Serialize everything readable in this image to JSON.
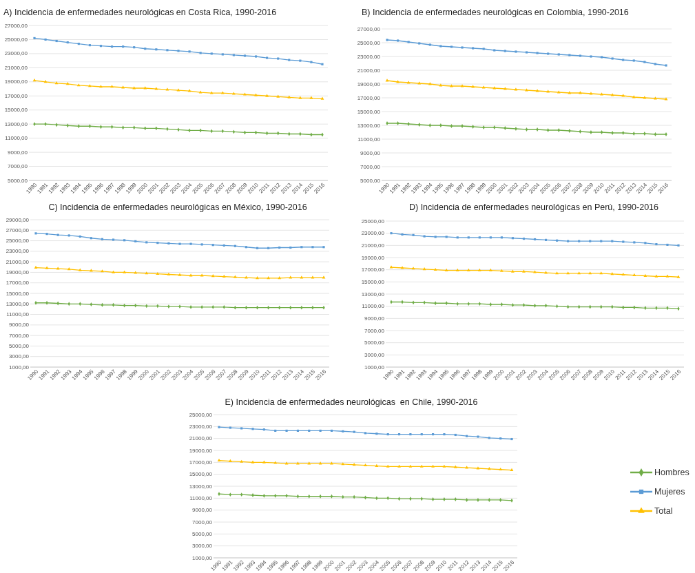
{
  "chart_data": [
    {
      "type": "line",
      "title": "A) Incidencia de enfermedades neurológicas en Costa Rica, 1990-2016",
      "categories": [
        "1990",
        "1991",
        "1992",
        "1993",
        "1994",
        "1995",
        "1996",
        "1997",
        "1998",
        "1999",
        "2000",
        "2001",
        "2002",
        "2003",
        "2004",
        "2005",
        "2006",
        "2007",
        "2008",
        "2009",
        "2010",
        "2011",
        "2012",
        "2013",
        "2014",
        "2015",
        "2016"
      ],
      "ylim": [
        5000,
        27000
      ],
      "yticks": [
        {
          "value": 5000,
          "label": "5000,00"
        },
        {
          "value": 7000,
          "label": "7000,00"
        },
        {
          "value": 9000,
          "label": "9000,00"
        },
        {
          "value": 11000,
          "label": "11000,00"
        },
        {
          "value": 13000,
          "label": "13000,00"
        },
        {
          "value": 15000,
          "label": "15000,00"
        },
        {
          "value": 17000,
          "label": "17000,00"
        },
        {
          "value": 19000,
          "label": "19000,00"
        },
        {
          "value": 21000,
          "label": "21000,00"
        },
        {
          "value": 23000,
          "label": "23000,00"
        },
        {
          "value": 25000,
          "label": "25000,00"
        },
        {
          "value": 27000,
          "label": "27000,00"
        }
      ],
      "grid": true,
      "series": [
        {
          "color": "#70ad47",
          "marker": "diamond",
          "values": [
            13000,
            13000,
            12900,
            12800,
            12700,
            12700,
            12600,
            12600,
            12500,
            12500,
            12400,
            12400,
            12300,
            12200,
            12100,
            12100,
            12000,
            12000,
            11900,
            11800,
            11800,
            11700,
            11700,
            11600,
            11600,
            11500,
            11500
          ]
        },
        {
          "color": "#5b9bd5",
          "marker": "square",
          "values": [
            25200,
            25000,
            24800,
            24600,
            24400,
            24200,
            24100,
            24000,
            24000,
            23900,
            23700,
            23600,
            23500,
            23400,
            23300,
            23100,
            23000,
            22900,
            22800,
            22700,
            22600,
            22400,
            22300,
            22100,
            22000,
            21800,
            21500
          ]
        },
        {
          "color": "#ffc000",
          "marker": "triangle",
          "values": [
            19200,
            19000,
            18800,
            18700,
            18500,
            18400,
            18300,
            18300,
            18200,
            18100,
            18100,
            18000,
            17900,
            17800,
            17700,
            17500,
            17400,
            17400,
            17300,
            17200,
            17100,
            17000,
            16900,
            16800,
            16700,
            16700,
            16600
          ]
        }
      ]
    },
    {
      "type": "line",
      "title": "B) Incidencia de enfermedades neurológicas en Colombia, 1990-2016",
      "categories": [
        "1990",
        "1991",
        "1992",
        "1993",
        "1994",
        "1995",
        "1996",
        "1997",
        "1998",
        "1999",
        "2000",
        "2001",
        "2002",
        "2003",
        "2004",
        "2005",
        "2006",
        "2007",
        "2008",
        "2009",
        "2010",
        "2011",
        "2012",
        "2013",
        "2014",
        "2015",
        "2016"
      ],
      "ylim": [
        5000,
        27000
      ],
      "yticks": [
        {
          "value": 5000,
          "label": "5000,00"
        },
        {
          "value": 7000,
          "label": "7000,00"
        },
        {
          "value": 9000,
          "label": "9000,00"
        },
        {
          "value": 11000,
          "label": "11000,00"
        },
        {
          "value": 13000,
          "label": "13000,00"
        },
        {
          "value": 15000,
          "label": "15000,00"
        },
        {
          "value": 17000,
          "label": "17000,00"
        },
        {
          "value": 19000,
          "label": "19000,00"
        },
        {
          "value": 21000,
          "label": "21000,00"
        },
        {
          "value": 23000,
          "label": "23000,00"
        },
        {
          "value": 25000,
          "label": "25000,00"
        },
        {
          "value": 27000,
          "label": "27000,00"
        }
      ],
      "grid": true,
      "series": [
        {
          "color": "#70ad47",
          "marker": "diamond",
          "values": [
            13300,
            13300,
            13200,
            13100,
            13000,
            13000,
            12900,
            12900,
            12800,
            12700,
            12700,
            12600,
            12500,
            12400,
            12400,
            12300,
            12300,
            12200,
            12100,
            12000,
            12000,
            11900,
            11900,
            11800,
            11800,
            11700,
            11700
          ]
        },
        {
          "color": "#5b9bd5",
          "marker": "square",
          "values": [
            25400,
            25300,
            25100,
            24900,
            24700,
            24500,
            24400,
            24300,
            24200,
            24100,
            23900,
            23800,
            23700,
            23600,
            23500,
            23400,
            23300,
            23200,
            23100,
            23000,
            22900,
            22700,
            22500,
            22400,
            22200,
            21900,
            21700
          ]
        },
        {
          "color": "#ffc000",
          "marker": "triangle",
          "values": [
            19500,
            19300,
            19200,
            19100,
            19000,
            18800,
            18700,
            18700,
            18600,
            18500,
            18400,
            18300,
            18200,
            18100,
            18000,
            17900,
            17800,
            17700,
            17700,
            17600,
            17500,
            17400,
            17300,
            17100,
            17000,
            16900,
            16800
          ]
        }
      ]
    },
    {
      "type": "line",
      "title": "C) Incidencia de enfermedades neurológicas en México, 1990-2016",
      "categories": [
        "1990",
        "1991",
        "1992",
        "1993",
        "1994",
        "1995",
        "1996",
        "1997",
        "1998",
        "1999",
        "2000",
        "2001",
        "2002",
        "2003",
        "2004",
        "2005",
        "2006",
        "2007",
        "2008",
        "2009",
        "2010",
        "2011",
        "2012",
        "2013",
        "2014",
        "2015",
        "2016"
      ],
      "ylim": [
        1000,
        29000
      ],
      "yticks": [
        {
          "value": 1000,
          "label": "1000,00"
        },
        {
          "value": 3000,
          "label": "3000,00"
        },
        {
          "value": 5000,
          "label": "5000,00"
        },
        {
          "value": 7000,
          "label": "7000,00"
        },
        {
          "value": 9000,
          "label": "9000,00"
        },
        {
          "value": 11000,
          "label": "11000,00"
        },
        {
          "value": 13000,
          "label": "13000,00"
        },
        {
          "value": 15000,
          "label": "15000,00"
        },
        {
          "value": 17000,
          "label": "17000,00"
        },
        {
          "value": 19000,
          "label": "19000,00"
        },
        {
          "value": 21000,
          "label": "21000,00"
        },
        {
          "value": 23000,
          "label": "23000,00"
        },
        {
          "value": 25000,
          "label": "25000,00"
        },
        {
          "value": 27000,
          "label": "27000,00"
        },
        {
          "value": 29000,
          "label": "29000,00"
        }
      ],
      "grid": true,
      "series": [
        {
          "color": "#70ad47",
          "marker": "diamond",
          "values": [
            13200,
            13200,
            13100,
            13000,
            13000,
            12900,
            12800,
            12800,
            12700,
            12700,
            12600,
            12600,
            12500,
            12500,
            12400,
            12400,
            12400,
            12400,
            12300,
            12300,
            12300,
            12300,
            12300,
            12300,
            12300,
            12300,
            12300
          ]
        },
        {
          "color": "#5b9bd5",
          "marker": "square",
          "values": [
            26400,
            26300,
            26100,
            26000,
            25800,
            25500,
            25300,
            25200,
            25100,
            24900,
            24700,
            24600,
            24500,
            24400,
            24400,
            24300,
            24200,
            24100,
            24000,
            23800,
            23600,
            23600,
            23700,
            23700,
            23800,
            23800,
            23800
          ]
        },
        {
          "color": "#ffc000",
          "marker": "triangle",
          "values": [
            19900,
            19800,
            19700,
            19600,
            19400,
            19300,
            19200,
            19000,
            19000,
            18900,
            18800,
            18700,
            18600,
            18500,
            18400,
            18400,
            18300,
            18200,
            18100,
            18000,
            17900,
            17900,
            17900,
            18000,
            18000,
            18000,
            18000
          ]
        }
      ]
    },
    {
      "type": "line",
      "title": "D) Incidencia de enfermedades neurológicas en Perú, 1990-2016",
      "categories": [
        "1990",
        "1991",
        "1992",
        "1993",
        "1994",
        "1995",
        "1996",
        "1997",
        "1998",
        "1999",
        "2000",
        "2001",
        "2002",
        "2003",
        "2004",
        "2005",
        "2006",
        "2007",
        "2008",
        "2009",
        "2010",
        "2011",
        "2012",
        "2013",
        "2014",
        "2015",
        "2016"
      ],
      "ylim": [
        1000,
        25000
      ],
      "yticks": [
        {
          "value": 1000,
          "label": "1000,00"
        },
        {
          "value": 3000,
          "label": "3000,00"
        },
        {
          "value": 5000,
          "label": "5000,00"
        },
        {
          "value": 7000,
          "label": "7000,00"
        },
        {
          "value": 9000,
          "label": "9000,00"
        },
        {
          "value": 11000,
          "label": "11000,00"
        },
        {
          "value": 13000,
          "label": "13000,00"
        },
        {
          "value": 15000,
          "label": "15000,00"
        },
        {
          "value": 17000,
          "label": "17000,00"
        },
        {
          "value": 19000,
          "label": "19000,00"
        },
        {
          "value": 21000,
          "label": "21000,00"
        },
        {
          "value": 23000,
          "label": "23000,00"
        },
        {
          "value": 25000,
          "label": "25000,00"
        }
      ],
      "grid": true,
      "series": [
        {
          "color": "#70ad47",
          "marker": "diamond",
          "values": [
            11700,
            11700,
            11600,
            11600,
            11500,
            11500,
            11400,
            11400,
            11400,
            11300,
            11300,
            11200,
            11200,
            11100,
            11100,
            11000,
            10900,
            10900,
            10900,
            10900,
            10900,
            10800,
            10800,
            10700,
            10700,
            10700,
            10600
          ]
        },
        {
          "color": "#5b9bd5",
          "marker": "square",
          "values": [
            23000,
            22800,
            22700,
            22500,
            22400,
            22400,
            22300,
            22300,
            22300,
            22300,
            22300,
            22200,
            22100,
            22000,
            21900,
            21800,
            21700,
            21700,
            21700,
            21700,
            21700,
            21600,
            21500,
            21400,
            21200,
            21100,
            21000
          ]
        },
        {
          "color": "#ffc000",
          "marker": "triangle",
          "values": [
            17400,
            17300,
            17200,
            17100,
            17000,
            16900,
            16900,
            16900,
            16900,
            16900,
            16800,
            16700,
            16700,
            16600,
            16500,
            16400,
            16400,
            16400,
            16400,
            16400,
            16300,
            16200,
            16100,
            16000,
            15900,
            15900,
            15800
          ]
        }
      ]
    },
    {
      "type": "line",
      "title": "E) Incidencia de enfermedades neurológicas  en Chile, 1990-2016",
      "categories": [
        "1990",
        "1991",
        "1992",
        "1993",
        "1994",
        "1995",
        "1996",
        "1997",
        "1998",
        "1999",
        "2000",
        "2001",
        "2002",
        "2003",
        "2004",
        "2005",
        "2006",
        "2007",
        "2008",
        "2009",
        "2010",
        "2011",
        "2012",
        "2013",
        "2014",
        "2015",
        "2016"
      ],
      "ylim": [
        1000,
        25000
      ],
      "yticks": [
        {
          "value": 1000,
          "label": "1000,00"
        },
        {
          "value": 3000,
          "label": "3000,00"
        },
        {
          "value": 5000,
          "label": "5000,00"
        },
        {
          "value": 7000,
          "label": "7000,00"
        },
        {
          "value": 9000,
          "label": "9000,00"
        },
        {
          "value": 11000,
          "label": "11000,00"
        },
        {
          "value": 13000,
          "label": "13000,00"
        },
        {
          "value": 15000,
          "label": "15000,00"
        },
        {
          "value": 17000,
          "label": "17000,00"
        },
        {
          "value": 19000,
          "label": "19000,00"
        },
        {
          "value": 21000,
          "label": "21000,00"
        },
        {
          "value": 23000,
          "label": "23000,00"
        },
        {
          "value": 25000,
          "label": "25000,00"
        }
      ],
      "grid": true,
      "legend": "right",
      "series": [
        {
          "name": "Hombres",
          "color": "#70ad47",
          "marker": "diamond",
          "values": [
            11700,
            11600,
            11600,
            11500,
            11400,
            11400,
            11400,
            11300,
            11300,
            11300,
            11300,
            11200,
            11200,
            11100,
            11000,
            11000,
            10900,
            10900,
            10900,
            10800,
            10800,
            10800,
            10700,
            10700,
            10700,
            10700,
            10600
          ]
        },
        {
          "name": "Mujeres",
          "color": "#5b9bd5",
          "marker": "square",
          "values": [
            22900,
            22800,
            22700,
            22600,
            22500,
            22300,
            22300,
            22300,
            22300,
            22300,
            22300,
            22200,
            22100,
            21900,
            21800,
            21700,
            21700,
            21700,
            21700,
            21700,
            21700,
            21600,
            21400,
            21300,
            21100,
            21000,
            20900
          ]
        },
        {
          "name": "Total",
          "color": "#ffc000",
          "marker": "triangle",
          "values": [
            17300,
            17200,
            17100,
            17000,
            17000,
            16900,
            16800,
            16800,
            16800,
            16800,
            16800,
            16700,
            16600,
            16500,
            16400,
            16300,
            16300,
            16300,
            16300,
            16300,
            16300,
            16200,
            16100,
            16000,
            15900,
            15800,
            15700
          ]
        }
      ]
    }
  ]
}
